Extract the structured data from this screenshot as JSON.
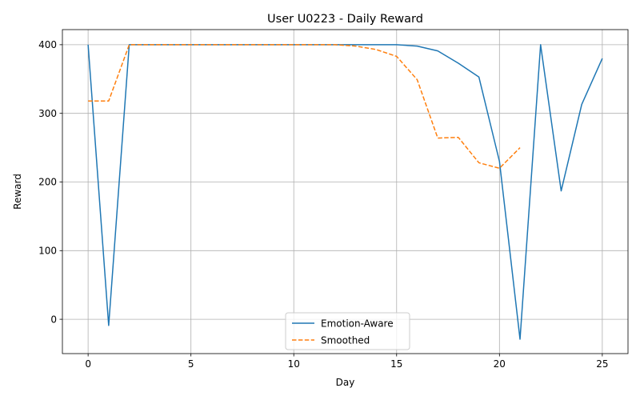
{
  "chart_data": {
    "type": "line",
    "title": "User U0223 - Daily Reward",
    "xlabel": "Day",
    "ylabel": "Reward",
    "xlim": [
      -1.25,
      26.25
    ],
    "ylim": [
      -50,
      422
    ],
    "xticks": [
      0,
      5,
      10,
      15,
      20,
      25
    ],
    "yticks": [
      0,
      100,
      200,
      300,
      400
    ],
    "grid": true,
    "legend_position": "bottom-center",
    "series": [
      {
        "name": "Emotion-Aware",
        "color": "#1f77b4",
        "dash": "solid",
        "x": [
          0,
          1,
          2,
          3,
          4,
          5,
          6,
          7,
          8,
          9,
          10,
          11,
          12,
          13,
          14,
          15,
          16,
          17,
          18,
          19,
          20,
          21,
          22,
          23,
          24,
          25
        ],
        "y": [
          400,
          -9,
          400,
          400,
          400,
          400,
          400,
          400,
          400,
          400,
          400,
          400,
          400,
          400,
          400,
          400,
          398,
          391,
          373,
          353,
          230,
          -29,
          400,
          187,
          313,
          380
        ]
      },
      {
        "name": "Smoothed",
        "color": "#ff7f0e",
        "dash": "dashed",
        "x": [
          0,
          1,
          2,
          3,
          4,
          5,
          6,
          7,
          8,
          9,
          10,
          11,
          12,
          13,
          14,
          15,
          16,
          17,
          18,
          19,
          20,
          21
        ],
        "y": [
          318,
          318,
          400,
          400,
          400,
          400,
          400,
          400,
          400,
          400,
          400,
          400,
          400,
          398,
          393,
          383,
          349,
          264,
          265,
          228,
          220,
          250
        ]
      }
    ]
  }
}
